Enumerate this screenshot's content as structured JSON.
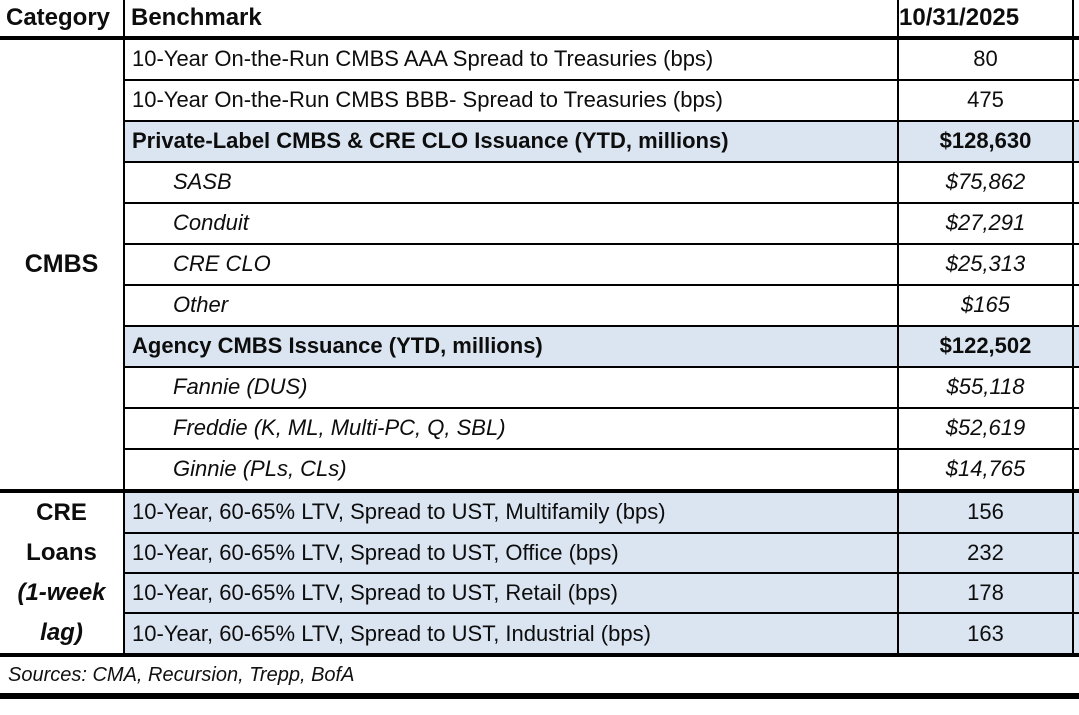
{
  "colors": {
    "highlight_blue": "#dbe5f1",
    "border_black": "#000000",
    "text_black": "#0d0d0d"
  },
  "header": {
    "category": "Category",
    "benchmark": "Benchmark",
    "date": "10/31/2025"
  },
  "category_groups": {
    "cmbs": {
      "label": "CMBS"
    },
    "cre_loans": {
      "line1": "CRE",
      "line2": "Loans",
      "line3": "(1-week",
      "line4": "lag)"
    }
  },
  "rows": [
    {
      "benchmark": "10-Year On-the-Run CMBS AAA Spread to Treasuries (bps)",
      "value": "80",
      "style": "plain"
    },
    {
      "benchmark": "10-Year On-the-Run CMBS BBB- Spread to Treasuries (bps)",
      "value": "475",
      "style": "plain"
    },
    {
      "benchmark": "Private-Label CMBS & CRE CLO Issuance (YTD, millions)",
      "value": "$128,630",
      "style": "bold-highlight"
    },
    {
      "benchmark": "SASB",
      "value": "$75,862",
      "style": "sub-italic"
    },
    {
      "benchmark": "Conduit",
      "value": "$27,291",
      "style": "sub-italic"
    },
    {
      "benchmark": "CRE CLO",
      "value": "$25,313",
      "style": "sub-italic"
    },
    {
      "benchmark": "Other",
      "value": "$165",
      "style": "sub-italic"
    },
    {
      "benchmark": "Agency CMBS Issuance (YTD, millions)",
      "value": "$122,502",
      "style": "bold-highlight"
    },
    {
      "benchmark": "Fannie (DUS)",
      "value": "$55,118",
      "style": "sub-italic"
    },
    {
      "benchmark": "Freddie (K, ML, Multi-PC, Q, SBL)",
      "value": "$52,619",
      "style": "sub-italic"
    },
    {
      "benchmark": "Ginnie (PLs, CLs)",
      "value": "$14,765",
      "style": "sub-italic"
    },
    {
      "benchmark": "10-Year, 60-65% LTV, Spread to UST, Multifamily (bps)",
      "value": "156",
      "style": "highlight"
    },
    {
      "benchmark": "10-Year, 60-65% LTV, Spread to UST, Office (bps)",
      "value": "232",
      "style": "highlight"
    },
    {
      "benchmark": "10-Year, 60-65% LTV, Spread to UST, Retail (bps)",
      "value": "178",
      "style": "highlight"
    },
    {
      "benchmark": "10-Year, 60-65% LTV, Spread to UST, Industrial (bps)",
      "value": "163",
      "style": "highlight"
    }
  ],
  "footer": {
    "sources": "Sources: CMA, Recursion, Trepp, BofA"
  }
}
